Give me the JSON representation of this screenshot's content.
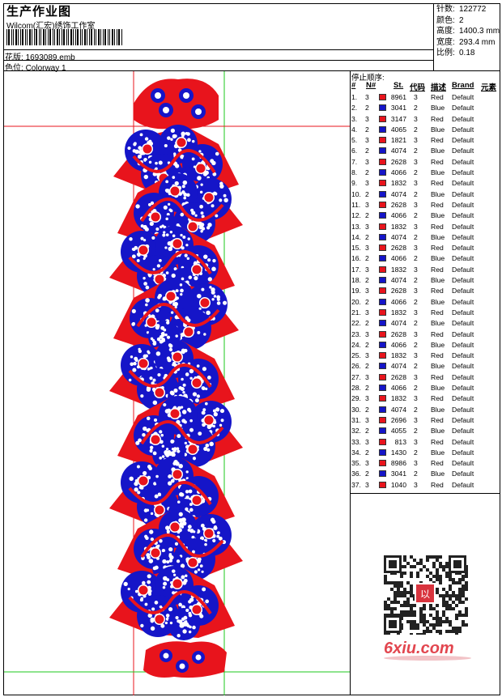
{
  "header": {
    "title": "生产作业图",
    "company": "Wilcom(汇宏)绣饰工作室",
    "design_label": "花版:",
    "design_file": "1693089.emb",
    "color_label": "色位:",
    "colorway": "Colorway 1"
  },
  "stats": [
    {
      "label": "针数:",
      "value": "122772"
    },
    {
      "label": "颜色:",
      "value": "2"
    },
    {
      "label": "高度:",
      "value": "1400.3 mm"
    },
    {
      "label": "宽度:",
      "value": "293.4 mm"
    },
    {
      "label": "比例:",
      "value": "0.18"
    }
  ],
  "stop_sequence": {
    "title": "停止顺序:",
    "headers": {
      "idx": "#",
      "n": "N#",
      "st": "St.",
      "code": "代码",
      "desc": "描述",
      "brand": "Brand",
      "elem": "元素"
    },
    "rows": [
      {
        "i": "1.",
        "n": "3",
        "st": "8961",
        "code": "3",
        "desc": "Red",
        "brand": "Default"
      },
      {
        "i": "2.",
        "n": "2",
        "st": "3041",
        "code": "2",
        "desc": "Blue",
        "brand": "Default"
      },
      {
        "i": "3.",
        "n": "3",
        "st": "3147",
        "code": "3",
        "desc": "Red",
        "brand": "Default"
      },
      {
        "i": "4.",
        "n": "2",
        "st": "4065",
        "code": "2",
        "desc": "Blue",
        "brand": "Default"
      },
      {
        "i": "5.",
        "n": "3",
        "st": "1821",
        "code": "3",
        "desc": "Red",
        "brand": "Default"
      },
      {
        "i": "6.",
        "n": "2",
        "st": "4074",
        "code": "2",
        "desc": "Blue",
        "brand": "Default"
      },
      {
        "i": "7.",
        "n": "3",
        "st": "2628",
        "code": "3",
        "desc": "Red",
        "brand": "Default"
      },
      {
        "i": "8.",
        "n": "2",
        "st": "4066",
        "code": "2",
        "desc": "Blue",
        "brand": "Default"
      },
      {
        "i": "9.",
        "n": "3",
        "st": "1832",
        "code": "3",
        "desc": "Red",
        "brand": "Default"
      },
      {
        "i": "10.",
        "n": "2",
        "st": "4074",
        "code": "2",
        "desc": "Blue",
        "brand": "Default"
      },
      {
        "i": "11.",
        "n": "3",
        "st": "2628",
        "code": "3",
        "desc": "Red",
        "brand": "Default"
      },
      {
        "i": "12.",
        "n": "2",
        "st": "4066",
        "code": "2",
        "desc": "Blue",
        "brand": "Default"
      },
      {
        "i": "13.",
        "n": "3",
        "st": "1832",
        "code": "3",
        "desc": "Red",
        "brand": "Default"
      },
      {
        "i": "14.",
        "n": "2",
        "st": "4074",
        "code": "2",
        "desc": "Blue",
        "brand": "Default"
      },
      {
        "i": "15.",
        "n": "3",
        "st": "2628",
        "code": "3",
        "desc": "Red",
        "brand": "Default"
      },
      {
        "i": "16.",
        "n": "2",
        "st": "4066",
        "code": "2",
        "desc": "Blue",
        "brand": "Default"
      },
      {
        "i": "17.",
        "n": "3",
        "st": "1832",
        "code": "3",
        "desc": "Red",
        "brand": "Default"
      },
      {
        "i": "18.",
        "n": "2",
        "st": "4074",
        "code": "2",
        "desc": "Blue",
        "brand": "Default"
      },
      {
        "i": "19.",
        "n": "3",
        "st": "2628",
        "code": "3",
        "desc": "Red",
        "brand": "Default"
      },
      {
        "i": "20.",
        "n": "2",
        "st": "4066",
        "code": "2",
        "desc": "Blue",
        "brand": "Default"
      },
      {
        "i": "21.",
        "n": "3",
        "st": "1832",
        "code": "3",
        "desc": "Red",
        "brand": "Default"
      },
      {
        "i": "22.",
        "n": "2",
        "st": "4074",
        "code": "2",
        "desc": "Blue",
        "brand": "Default"
      },
      {
        "i": "23.",
        "n": "3",
        "st": "2628",
        "code": "3",
        "desc": "Red",
        "brand": "Default"
      },
      {
        "i": "24.",
        "n": "2",
        "st": "4066",
        "code": "2",
        "desc": "Blue",
        "brand": "Default"
      },
      {
        "i": "25.",
        "n": "3",
        "st": "1832",
        "code": "3",
        "desc": "Red",
        "brand": "Default"
      },
      {
        "i": "26.",
        "n": "2",
        "st": "4074",
        "code": "2",
        "desc": "Blue",
        "brand": "Default"
      },
      {
        "i": "27.",
        "n": "3",
        "st": "2628",
        "code": "3",
        "desc": "Red",
        "brand": "Default"
      },
      {
        "i": "28.",
        "n": "2",
        "st": "4066",
        "code": "2",
        "desc": "Blue",
        "brand": "Default"
      },
      {
        "i": "29.",
        "n": "3",
        "st": "1832",
        "code": "3",
        "desc": "Red",
        "brand": "Default"
      },
      {
        "i": "30.",
        "n": "2",
        "st": "4074",
        "code": "2",
        "desc": "Blue",
        "brand": "Default"
      },
      {
        "i": "31.",
        "n": "3",
        "st": "2696",
        "code": "3",
        "desc": "Red",
        "brand": "Default"
      },
      {
        "i": "32.",
        "n": "2",
        "st": "4055",
        "code": "2",
        "desc": "Blue",
        "brand": "Default"
      },
      {
        "i": "33.",
        "n": "3",
        "st": "813",
        "code": "3",
        "desc": "Red",
        "brand": "Default"
      },
      {
        "i": "34.",
        "n": "2",
        "st": "1430",
        "code": "2",
        "desc": "Blue",
        "brand": "Default"
      },
      {
        "i": "35.",
        "n": "3",
        "st": "8986",
        "code": "3",
        "desc": "Red",
        "brand": "Default"
      },
      {
        "i": "36.",
        "n": "2",
        "st": "3041",
        "code": "2",
        "desc": "Blue",
        "brand": "Default"
      },
      {
        "i": "37.",
        "n": "3",
        "st": "1040",
        "code": "3",
        "desc": "Red",
        "brand": "Default"
      }
    ]
  },
  "thread_colors": {
    "Red": "#e8141c",
    "Blue": "#1515c8"
  },
  "guide_colors": {
    "vertical_left": "#e8141c",
    "vertical_right": "#1ec81e",
    "top_hline": "#e8141c",
    "bottom_hline": "#1ec81e"
  },
  "qr": {
    "stamp": "以",
    "stamp_color": "#d9343e"
  },
  "watermark": "6xiu.com"
}
